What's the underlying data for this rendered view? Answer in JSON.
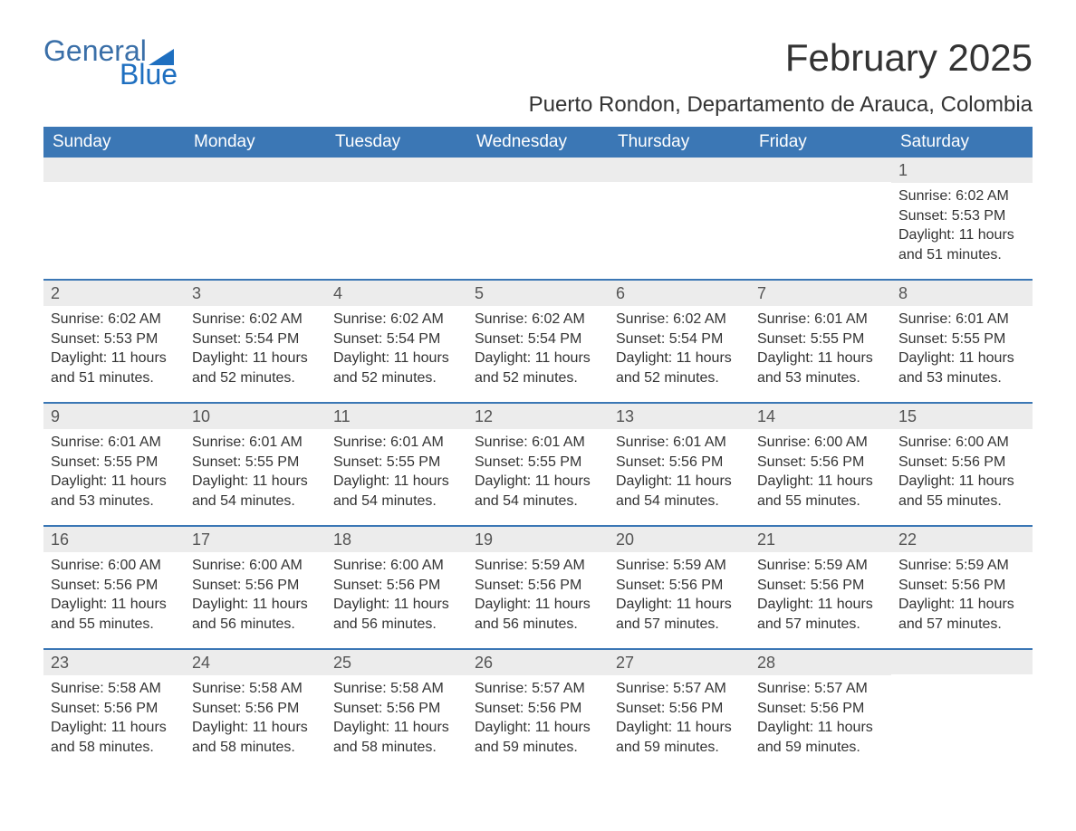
{
  "brand": {
    "word1": "General",
    "word2": "Blue",
    "accent_color": "#1e6fc0",
    "text_color": "#3a6fa8"
  },
  "title": "February 2025",
  "location": "Puerto Rondon, Departamento de Arauca, Colombia",
  "weekday_labels": [
    "Sunday",
    "Monday",
    "Tuesday",
    "Wednesday",
    "Thursday",
    "Friday",
    "Saturday"
  ],
  "colors": {
    "header_bg": "#3b77b5",
    "header_text": "#ffffff",
    "daynum_bg": "#ececec",
    "daynum_text": "#555555",
    "body_text": "#333333",
    "rule": "#3b77b5",
    "page_bg": "#ffffff"
  },
  "weeks": [
    [
      {
        "day": "",
        "sunrise": "",
        "sunset": "",
        "daylight": ""
      },
      {
        "day": "",
        "sunrise": "",
        "sunset": "",
        "daylight": ""
      },
      {
        "day": "",
        "sunrise": "",
        "sunset": "",
        "daylight": ""
      },
      {
        "day": "",
        "sunrise": "",
        "sunset": "",
        "daylight": ""
      },
      {
        "day": "",
        "sunrise": "",
        "sunset": "",
        "daylight": ""
      },
      {
        "day": "",
        "sunrise": "",
        "sunset": "",
        "daylight": ""
      },
      {
        "day": "1",
        "sunrise": "Sunrise: 6:02 AM",
        "sunset": "Sunset: 5:53 PM",
        "daylight": "Daylight: 11 hours and 51 minutes."
      }
    ],
    [
      {
        "day": "2",
        "sunrise": "Sunrise: 6:02 AM",
        "sunset": "Sunset: 5:53 PM",
        "daylight": "Daylight: 11 hours and 51 minutes."
      },
      {
        "day": "3",
        "sunrise": "Sunrise: 6:02 AM",
        "sunset": "Sunset: 5:54 PM",
        "daylight": "Daylight: 11 hours and 52 minutes."
      },
      {
        "day": "4",
        "sunrise": "Sunrise: 6:02 AM",
        "sunset": "Sunset: 5:54 PM",
        "daylight": "Daylight: 11 hours and 52 minutes."
      },
      {
        "day": "5",
        "sunrise": "Sunrise: 6:02 AM",
        "sunset": "Sunset: 5:54 PM",
        "daylight": "Daylight: 11 hours and 52 minutes."
      },
      {
        "day": "6",
        "sunrise": "Sunrise: 6:02 AM",
        "sunset": "Sunset: 5:54 PM",
        "daylight": "Daylight: 11 hours and 52 minutes."
      },
      {
        "day": "7",
        "sunrise": "Sunrise: 6:01 AM",
        "sunset": "Sunset: 5:55 PM",
        "daylight": "Daylight: 11 hours and 53 minutes."
      },
      {
        "day": "8",
        "sunrise": "Sunrise: 6:01 AM",
        "sunset": "Sunset: 5:55 PM",
        "daylight": "Daylight: 11 hours and 53 minutes."
      }
    ],
    [
      {
        "day": "9",
        "sunrise": "Sunrise: 6:01 AM",
        "sunset": "Sunset: 5:55 PM",
        "daylight": "Daylight: 11 hours and 53 minutes."
      },
      {
        "day": "10",
        "sunrise": "Sunrise: 6:01 AM",
        "sunset": "Sunset: 5:55 PM",
        "daylight": "Daylight: 11 hours and 54 minutes."
      },
      {
        "day": "11",
        "sunrise": "Sunrise: 6:01 AM",
        "sunset": "Sunset: 5:55 PM",
        "daylight": "Daylight: 11 hours and 54 minutes."
      },
      {
        "day": "12",
        "sunrise": "Sunrise: 6:01 AM",
        "sunset": "Sunset: 5:55 PM",
        "daylight": "Daylight: 11 hours and 54 minutes."
      },
      {
        "day": "13",
        "sunrise": "Sunrise: 6:01 AM",
        "sunset": "Sunset: 5:56 PM",
        "daylight": "Daylight: 11 hours and 54 minutes."
      },
      {
        "day": "14",
        "sunrise": "Sunrise: 6:00 AM",
        "sunset": "Sunset: 5:56 PM",
        "daylight": "Daylight: 11 hours and 55 minutes."
      },
      {
        "day": "15",
        "sunrise": "Sunrise: 6:00 AM",
        "sunset": "Sunset: 5:56 PM",
        "daylight": "Daylight: 11 hours and 55 minutes."
      }
    ],
    [
      {
        "day": "16",
        "sunrise": "Sunrise: 6:00 AM",
        "sunset": "Sunset: 5:56 PM",
        "daylight": "Daylight: 11 hours and 55 minutes."
      },
      {
        "day": "17",
        "sunrise": "Sunrise: 6:00 AM",
        "sunset": "Sunset: 5:56 PM",
        "daylight": "Daylight: 11 hours and 56 minutes."
      },
      {
        "day": "18",
        "sunrise": "Sunrise: 6:00 AM",
        "sunset": "Sunset: 5:56 PM",
        "daylight": "Daylight: 11 hours and 56 minutes."
      },
      {
        "day": "19",
        "sunrise": "Sunrise: 5:59 AM",
        "sunset": "Sunset: 5:56 PM",
        "daylight": "Daylight: 11 hours and 56 minutes."
      },
      {
        "day": "20",
        "sunrise": "Sunrise: 5:59 AM",
        "sunset": "Sunset: 5:56 PM",
        "daylight": "Daylight: 11 hours and 57 minutes."
      },
      {
        "day": "21",
        "sunrise": "Sunrise: 5:59 AM",
        "sunset": "Sunset: 5:56 PM",
        "daylight": "Daylight: 11 hours and 57 minutes."
      },
      {
        "day": "22",
        "sunrise": "Sunrise: 5:59 AM",
        "sunset": "Sunset: 5:56 PM",
        "daylight": "Daylight: 11 hours and 57 minutes."
      }
    ],
    [
      {
        "day": "23",
        "sunrise": "Sunrise: 5:58 AM",
        "sunset": "Sunset: 5:56 PM",
        "daylight": "Daylight: 11 hours and 58 minutes."
      },
      {
        "day": "24",
        "sunrise": "Sunrise: 5:58 AM",
        "sunset": "Sunset: 5:56 PM",
        "daylight": "Daylight: 11 hours and 58 minutes."
      },
      {
        "day": "25",
        "sunrise": "Sunrise: 5:58 AM",
        "sunset": "Sunset: 5:56 PM",
        "daylight": "Daylight: 11 hours and 58 minutes."
      },
      {
        "day": "26",
        "sunrise": "Sunrise: 5:57 AM",
        "sunset": "Sunset: 5:56 PM",
        "daylight": "Daylight: 11 hours and 59 minutes."
      },
      {
        "day": "27",
        "sunrise": "Sunrise: 5:57 AM",
        "sunset": "Sunset: 5:56 PM",
        "daylight": "Daylight: 11 hours and 59 minutes."
      },
      {
        "day": "28",
        "sunrise": "Sunrise: 5:57 AM",
        "sunset": "Sunset: 5:56 PM",
        "daylight": "Daylight: 11 hours and 59 minutes."
      },
      {
        "day": "",
        "sunrise": "",
        "sunset": "",
        "daylight": ""
      }
    ]
  ]
}
